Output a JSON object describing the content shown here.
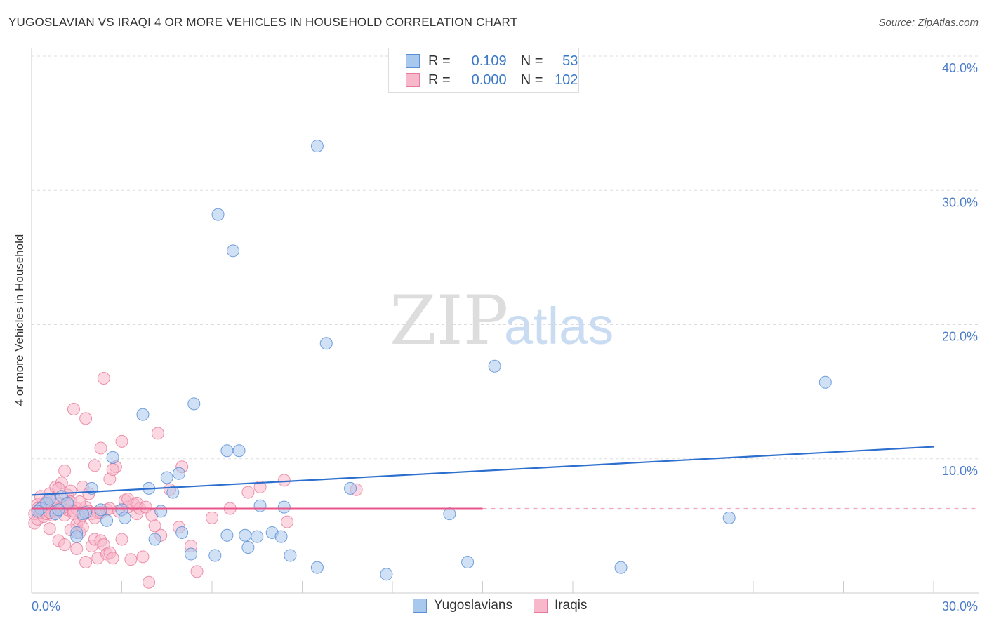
{
  "title": "YUGOSLAVIAN VS IRAQI 4 OR MORE VEHICLES IN HOUSEHOLD CORRELATION CHART",
  "source": "Source: ZipAtlas.com",
  "watermark_zip": "ZIP",
  "watermark_atlas": "atlas",
  "legend": {
    "r_label": "R =",
    "n_label": "N =",
    "rows": [
      {
        "r": "0.109",
        "n": "53"
      },
      {
        "r": "0.000",
        "n": "102"
      }
    ]
  },
  "colors": {
    "blue_fill": "#a9c8ee",
    "blue_stroke": "#5b8fd6",
    "blue_line": "#2d6fce",
    "pink_fill": "#f7b8cb",
    "pink_stroke": "#e7799a",
    "pink_line": "#e8558a"
  },
  "chart_data": {
    "type": "scatter",
    "ylabel": "4 or more Vehicles in Household",
    "xlim": [
      0,
      30
    ],
    "ylim": [
      0,
      40
    ],
    "x_tick_labels": [
      "0.0%",
      "30.0%"
    ],
    "y_ticks": [
      10,
      20,
      30,
      40
    ],
    "y_tick_labels": [
      "10.0%",
      "20.0%",
      "30.0%",
      "40.0%"
    ],
    "series": [
      {
        "name": "Yugoslavians",
        "trend": {
          "x": [
            0,
            30
          ],
          "y": [
            7.3,
            10.9
          ]
        },
        "points": [
          [
            0.3,
            6.3
          ],
          [
            0.5,
            6.7
          ],
          [
            0.6,
            7.0
          ],
          [
            0.8,
            5.9
          ],
          [
            1.0,
            7.2
          ],
          [
            1.2,
            6.7
          ],
          [
            1.5,
            4.5
          ],
          [
            1.5,
            4.2
          ],
          [
            1.8,
            6.0
          ],
          [
            2.0,
            7.8
          ],
          [
            2.3,
            6.2
          ],
          [
            2.7,
            10.1
          ],
          [
            3.0,
            6.2
          ],
          [
            3.1,
            5.6
          ],
          [
            2.5,
            5.4
          ],
          [
            3.7,
            13.3
          ],
          [
            3.9,
            7.8
          ],
          [
            4.1,
            4.0
          ],
          [
            4.3,
            6.1
          ],
          [
            4.5,
            8.6
          ],
          [
            4.7,
            7.5
          ],
          [
            4.9,
            8.9
          ],
          [
            5.0,
            4.5
          ],
          [
            5.3,
            2.9
          ],
          [
            5.4,
            14.1
          ],
          [
            6.1,
            2.8
          ],
          [
            6.2,
            28.2
          ],
          [
            6.5,
            10.6
          ],
          [
            6.5,
            4.3
          ],
          [
            6.7,
            25.5
          ],
          [
            6.9,
            10.6
          ],
          [
            7.1,
            4.3
          ],
          [
            7.2,
            3.4
          ],
          [
            7.5,
            4.2
          ],
          [
            7.6,
            6.5
          ],
          [
            8.0,
            4.5
          ],
          [
            8.3,
            4.2
          ],
          [
            8.4,
            6.4
          ],
          [
            8.6,
            2.8
          ],
          [
            9.5,
            1.9
          ],
          [
            9.5,
            33.3
          ],
          [
            9.8,
            18.6
          ],
          [
            10.6,
            7.8
          ],
          [
            11.8,
            1.4
          ],
          [
            13.9,
            5.9
          ],
          [
            14.5,
            2.3
          ],
          [
            15.4,
            16.9
          ],
          [
            19.6,
            1.9
          ],
          [
            23.2,
            5.6
          ],
          [
            26.4,
            15.7
          ],
          [
            0.2,
            6.1
          ],
          [
            0.9,
            6.2
          ],
          [
            1.7,
            5.9
          ]
        ]
      },
      {
        "name": "Iraqis",
        "trend": {
          "x": [
            0,
            15
          ],
          "y": [
            6.3,
            6.3
          ]
        },
        "trend_dashed": {
          "x": [
            15,
            30
          ],
          "y": [
            6.3,
            6.3
          ]
        },
        "points": [
          [
            0.1,
            5.2
          ],
          [
            0.1,
            5.9
          ],
          [
            0.2,
            6.6
          ],
          [
            0.2,
            5.5
          ],
          [
            0.3,
            6.0
          ],
          [
            0.3,
            7.2
          ],
          [
            0.4,
            5.7
          ],
          [
            0.4,
            6.2
          ],
          [
            0.5,
            6.8
          ],
          [
            0.5,
            5.9
          ],
          [
            0.6,
            4.8
          ],
          [
            0.6,
            7.4
          ],
          [
            0.7,
            6.4
          ],
          [
            0.7,
            5.8
          ],
          [
            0.8,
            7.9
          ],
          [
            0.8,
            6.1
          ],
          [
            0.9,
            3.9
          ],
          [
            0.9,
            6.7
          ],
          [
            1.0,
            8.2
          ],
          [
            1.0,
            6.5
          ],
          [
            1.1,
            5.8
          ],
          [
            1.1,
            9.1
          ],
          [
            1.1,
            3.6
          ],
          [
            1.2,
            7.3
          ],
          [
            1.2,
            6.2
          ],
          [
            1.3,
            7.6
          ],
          [
            1.3,
            6.8
          ],
          [
            1.4,
            13.7
          ],
          [
            1.4,
            5.9
          ],
          [
            1.5,
            6.3
          ],
          [
            1.5,
            3.3
          ],
          [
            1.5,
            5.1
          ],
          [
            1.6,
            5.5
          ],
          [
            1.6,
            4.5
          ],
          [
            1.7,
            7.9
          ],
          [
            1.7,
            5.8
          ],
          [
            1.8,
            6.4
          ],
          [
            1.8,
            13.0
          ],
          [
            1.8,
            2.3
          ],
          [
            1.9,
            6.1
          ],
          [
            2.0,
            5.9
          ],
          [
            2.0,
            3.5
          ],
          [
            2.1,
            4.0
          ],
          [
            2.1,
            9.5
          ],
          [
            2.2,
            6.0
          ],
          [
            2.2,
            2.6
          ],
          [
            2.3,
            3.9
          ],
          [
            2.3,
            10.8
          ],
          [
            2.4,
            3.6
          ],
          [
            2.4,
            16.0
          ],
          [
            2.5,
            2.9
          ],
          [
            2.5,
            6.2
          ],
          [
            2.6,
            8.5
          ],
          [
            2.6,
            3.0
          ],
          [
            2.7,
            2.6
          ],
          [
            2.8,
            9.4
          ],
          [
            3.0,
            4.0
          ],
          [
            3.0,
            11.3
          ],
          [
            3.1,
            6.9
          ],
          [
            3.2,
            6.4
          ],
          [
            3.3,
            2.5
          ],
          [
            3.4,
            6.6
          ],
          [
            3.5,
            5.9
          ],
          [
            3.6,
            6.3
          ],
          [
            3.7,
            2.7
          ],
          [
            3.9,
            0.8
          ],
          [
            4.1,
            5.0
          ],
          [
            4.2,
            11.9
          ],
          [
            4.3,
            4.3
          ],
          [
            4.6,
            7.7
          ],
          [
            4.9,
            4.9
          ],
          [
            5.0,
            9.4
          ],
          [
            5.3,
            3.5
          ],
          [
            5.5,
            1.6
          ],
          [
            6.0,
            5.6
          ],
          [
            6.6,
            6.3
          ],
          [
            7.2,
            7.5
          ],
          [
            7.6,
            7.9
          ],
          [
            8.4,
            8.4
          ],
          [
            8.5,
            5.3
          ],
          [
            10.8,
            7.7
          ],
          [
            0.2,
            6.3
          ],
          [
            0.4,
            6.5
          ],
          [
            0.6,
            6.0
          ],
          [
            0.8,
            6.9
          ],
          [
            1.0,
            6.3
          ],
          [
            1.2,
            6.6
          ],
          [
            1.4,
            6.1
          ],
          [
            1.6,
            6.8
          ],
          [
            1.9,
            7.4
          ],
          [
            2.1,
            5.6
          ],
          [
            2.3,
            6.0
          ],
          [
            2.6,
            6.3
          ],
          [
            2.9,
            6.1
          ],
          [
            3.2,
            7.0
          ],
          [
            3.5,
            6.7
          ],
          [
            3.8,
            6.4
          ],
          [
            4.0,
            5.8
          ],
          [
            1.3,
            4.7
          ],
          [
            0.9,
            7.8
          ],
          [
            2.7,
            9.2
          ],
          [
            1.7,
            4.9
          ]
        ]
      }
    ]
  },
  "bottom_legend": [
    "Yugoslavians",
    "Iraqis"
  ]
}
